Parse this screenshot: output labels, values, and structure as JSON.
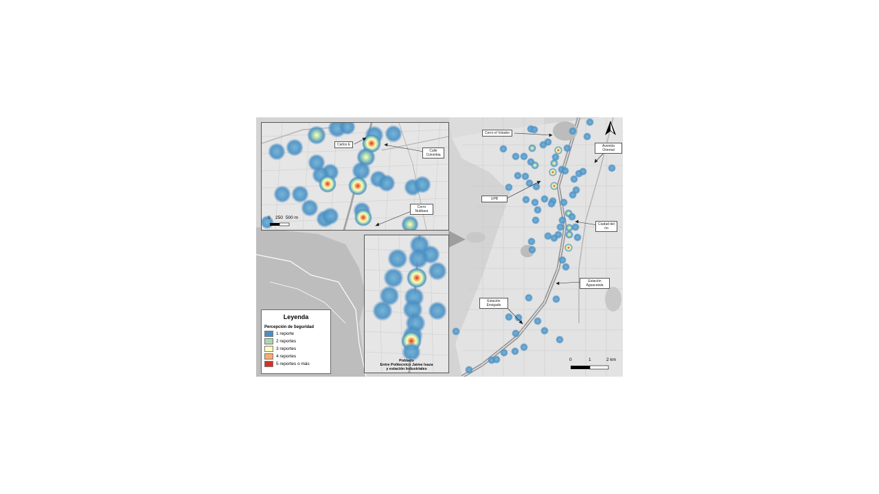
{
  "legend": {
    "title": "Leyenda",
    "subtitle": "Percepción de Seguridad",
    "items": [
      {
        "label": "1 reporte",
        "color": "#4a8fc4"
      },
      {
        "label": "2 reportes",
        "color": "#a8d8b0"
      },
      {
        "label": "3 reportes",
        "color": "#ffffbf"
      },
      {
        "label": "4 reportes",
        "color": "#f7ad6a"
      },
      {
        "label": "5 reportes o más",
        "color": "#d7302a"
      }
    ]
  },
  "main_map": {
    "labels": {
      "cerro_voladora": "Cerro el Volador",
      "avenida_oriental": "Avenida Oriental",
      "upb": "UPB",
      "ciudad_del_rio": "Ciudad del río",
      "estacion_aguacatala": "Estación Aguacatala",
      "estacion_envigado": "Estación Envigado"
    },
    "scale": {
      "label_0": "0",
      "label_1": "1",
      "label_2": "2 km"
    }
  },
  "inset_top": {
    "labels": {
      "carlos_e": "Carlos E",
      "calle_colombia": "Calle Colombia",
      "cerro_nutibara": "Cerro Nutibara"
    },
    "scale": {
      "label_0": "0",
      "label_250": "250",
      "label_500": "500 m"
    }
  },
  "inset_bottom": {
    "caption_line1": "Poblado",
    "caption_line2": "Entre Politecnico Jaime Isaza",
    "caption_line3": "y estación Industriales"
  }
}
